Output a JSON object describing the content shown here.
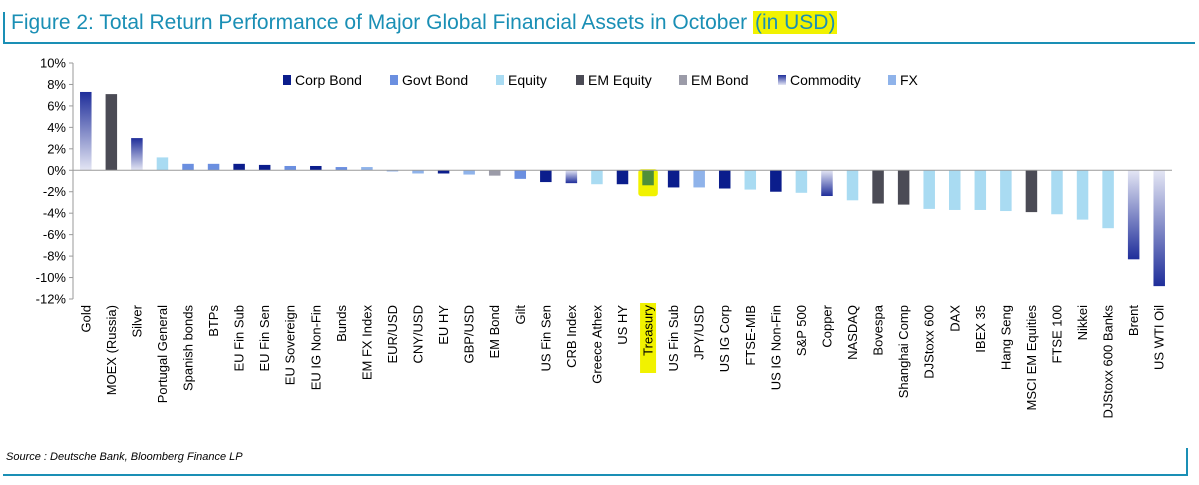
{
  "title": {
    "main": "Figure 2: Total Return Performance of Major Global Financial Assets in October ",
    "highlight": "(in USD)"
  },
  "source": "Source : Deutsche Bank, Bloomberg Finance LP",
  "colors": {
    "Corp Bond": "#0b1d8c",
    "Govt Bond": "#6b8fe0",
    "Equity": "#a9dbf2",
    "EM Equity": "#4b4b55",
    "EM Bond": "#9b9ba8",
    "Commodity": "#1f2e9a",
    "FX": "#8fb3ea",
    "highlight": "#f1f200"
  },
  "chart_data": {
    "type": "bar",
    "ylim": [
      -12,
      10
    ],
    "yticks": [
      10,
      8,
      6,
      4,
      2,
      0,
      -2,
      -4,
      -6,
      -8,
      -10,
      -12
    ],
    "ytick_labels": [
      "10%",
      "8%",
      "6%",
      "4%",
      "2%",
      "0%",
      "-2%",
      "-4%",
      "-6%",
      "-8%",
      "-10%",
      "-12%"
    ],
    "legend_position": "top",
    "legend": [
      "Corp Bond",
      "Govt Bond",
      "Equity",
      "EM Equity",
      "EM Bond",
      "Commodity",
      "FX"
    ],
    "categories": [
      "Gold",
      "MOEX (Russia)",
      "Silver",
      "Portugal General",
      "Spanish bonds",
      "BTPs",
      "EU Fin Sub",
      "EU Fin Sen",
      "EU Sovereign",
      "EU IG Non-Fin",
      "Bunds",
      "EM FX Index",
      "EUR/USD",
      "CNY/USD",
      "EU HY",
      "GBP/USD",
      "EM Bond",
      "Gilt",
      "US Fin Sen",
      "CRB Index",
      "Greece Athex",
      "US HY",
      "Treasury",
      "US Fin Sub",
      "JPY/USD",
      "US IG Corp",
      "FTSE-MIB",
      "US IG Non-Fin",
      "S&P 500",
      "Copper",
      "NASDAQ",
      "Bovespa",
      "Shanghai Comp",
      "DJStoxx 600",
      "DAX",
      "IBEX 35",
      "Hang Seng",
      "MSCI EM Equities",
      "FTSE 100",
      "Nikkei",
      "DJStoxx 600 Banks",
      "Brent",
      "US WTI Oil"
    ],
    "values": [
      7.3,
      7.1,
      3.0,
      1.2,
      0.6,
      0.6,
      0.6,
      0.5,
      0.4,
      0.4,
      0.3,
      0.3,
      -0.1,
      -0.3,
      -0.3,
      -0.4,
      -0.5,
      -0.8,
      -1.1,
      -1.2,
      -1.3,
      -1.3,
      -1.4,
      -1.6,
      -1.6,
      -1.7,
      -1.8,
      -2.0,
      -2.1,
      -2.4,
      -2.8,
      -3.1,
      -3.2,
      -3.6,
      -3.7,
      -3.7,
      -3.8,
      -3.9,
      -4.1,
      -4.6,
      -5.4,
      -8.3,
      -10.8
    ],
    "asset_class": [
      "Commodity",
      "EM Equity",
      "Commodity",
      "Equity",
      "Govt Bond",
      "Govt Bond",
      "Corp Bond",
      "Corp Bond",
      "Govt Bond",
      "Corp Bond",
      "Govt Bond",
      "FX",
      "FX",
      "FX",
      "Corp Bond",
      "FX",
      "EM Bond",
      "Govt Bond",
      "Corp Bond",
      "Commodity",
      "Equity",
      "Corp Bond",
      "Govt Bond",
      "Corp Bond",
      "FX",
      "Corp Bond",
      "Equity",
      "Corp Bond",
      "Equity",
      "Commodity",
      "Equity",
      "EM Equity",
      "EM Equity",
      "Equity",
      "Equity",
      "Equity",
      "Equity",
      "EM Equity",
      "Equity",
      "Equity",
      "Equity",
      "Commodity",
      "Commodity"
    ],
    "highlighted": [
      "Treasury"
    ]
  }
}
